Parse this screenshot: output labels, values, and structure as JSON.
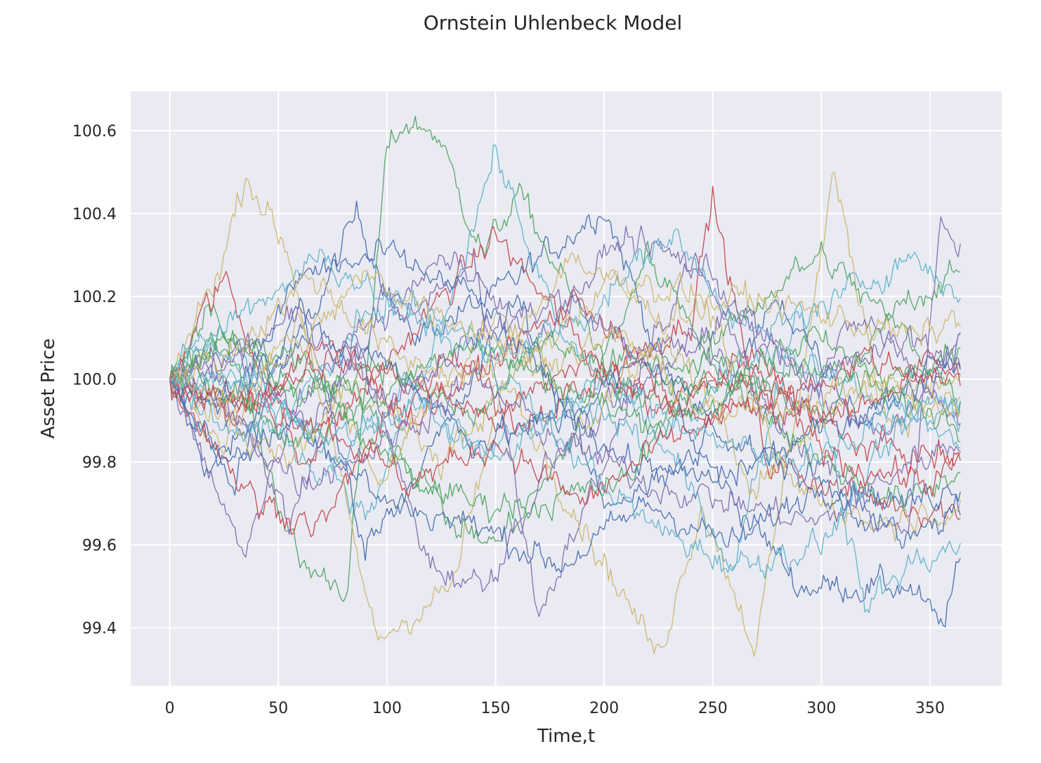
{
  "chart_data": {
    "type": "line",
    "title": "Ornstein Uhlenbeck Model",
    "xlabel": "Time,t",
    "ylabel": "Asset Price",
    "xlim": [
      -18,
      383
    ],
    "ylim": [
      99.26,
      100.695
    ],
    "xticks": [
      0,
      50,
      100,
      150,
      200,
      250,
      300,
      350
    ],
    "yticks": [
      99.4,
      99.6,
      99.8,
      100.0,
      100.2,
      100.4,
      100.6
    ],
    "ytick_labels": [
      "99.4",
      "99.6",
      "99.8",
      "100.0",
      "100.2",
      "100.4",
      "100.6"
    ],
    "grid": true,
    "legend": "none",
    "background": "#eaeaf2",
    "palette": [
      "#4c72b0",
      "#55a868",
      "#c44e52",
      "#8172b2",
      "#ccb974",
      "#64b5cd"
    ],
    "n_steps": 365,
    "initial_value": 100.0,
    "series_anchors": [
      [
        [
          0,
          100
        ],
        [
          18,
          99.78
        ],
        [
          40,
          99.9
        ],
        [
          70,
          100.2
        ],
        [
          86,
          100.4
        ],
        [
          110,
          100.1
        ],
        [
          150,
          100.2
        ],
        [
          200,
          100.42
        ],
        [
          240,
          99.85
        ],
        [
          290,
          99.5
        ],
        [
          340,
          99.5
        ],
        [
          355,
          99.4
        ],
        [
          364,
          99.55
        ]
      ],
      [
        [
          0,
          100
        ],
        [
          20,
          100.2
        ],
        [
          60,
          99.55
        ],
        [
          82,
          99.5
        ],
        [
          100,
          100.55
        ],
        [
          108,
          100.62
        ],
        [
          122,
          100.6
        ],
        [
          145,
          100.3
        ],
        [
          160,
          100.45
        ],
        [
          200,
          100.05
        ],
        [
          260,
          100.0
        ],
        [
          300,
          99.9
        ],
        [
          340,
          100.2
        ],
        [
          364,
          100.25
        ]
      ],
      [
        [
          0,
          100
        ],
        [
          25,
          100.25
        ],
        [
          60,
          99.8
        ],
        [
          110,
          100.1
        ],
        [
          150,
          100.35
        ],
        [
          200,
          100.0
        ],
        [
          240,
          100.15
        ],
        [
          250,
          100.44
        ],
        [
          275,
          99.8
        ],
        [
          330,
          99.7
        ],
        [
          364,
          99.68
        ]
      ],
      [
        [
          0,
          100
        ],
        [
          25,
          99.7
        ],
        [
          33,
          99.56
        ],
        [
          60,
          99.95
        ],
        [
          100,
          100.2
        ],
        [
          140,
          100.3
        ],
        [
          170,
          99.43
        ],
        [
          200,
          99.8
        ],
        [
          240,
          100.3
        ],
        [
          280,
          99.9
        ],
        [
          340,
          99.6
        ],
        [
          355,
          100.38
        ],
        [
          364,
          100.28
        ]
      ],
      [
        [
          0,
          100
        ],
        [
          25,
          100.3
        ],
        [
          35,
          100.5
        ],
        [
          55,
          100.3
        ],
        [
          80,
          99.72
        ],
        [
          95,
          99.37
        ],
        [
          130,
          99.5
        ],
        [
          155,
          100.0
        ],
        [
          190,
          99.65
        ],
        [
          225,
          99.33
        ],
        [
          245,
          99.7
        ],
        [
          270,
          99.35
        ],
        [
          300,
          100.3
        ],
        [
          305,
          100.5
        ],
        [
          330,
          99.9
        ],
        [
          364,
          99.95
        ]
      ],
      [
        [
          0,
          100
        ],
        [
          15,
          100.1
        ],
        [
          60,
          99.9
        ],
        [
          90,
          99.65
        ],
        [
          120,
          100.05
        ],
        [
          150,
          100.55
        ],
        [
          180,
          100.1
        ],
        [
          220,
          99.9
        ],
        [
          260,
          99.55
        ],
        [
          290,
          100.2
        ],
        [
          320,
          99.45
        ],
        [
          340,
          99.55
        ],
        [
          364,
          99.6
        ]
      ],
      [
        [
          0,
          100
        ],
        [
          30,
          99.75
        ],
        [
          60,
          100.2
        ],
        [
          90,
          99.6
        ],
        [
          130,
          99.9
        ],
        [
          160,
          100.2
        ],
        [
          200,
          99.7
        ],
        [
          240,
          99.8
        ],
        [
          280,
          100.2
        ],
        [
          320,
          99.9
        ],
        [
          364,
          100.1
        ]
      ],
      [
        [
          0,
          100
        ],
        [
          25,
          100.1
        ],
        [
          55,
          100.0
        ],
        [
          90,
          99.95
        ],
        [
          130,
          99.65
        ],
        [
          150,
          99.6
        ],
        [
          180,
          99.8
        ],
        [
          220,
          100.3
        ],
        [
          260,
          100.0
        ],
        [
          300,
          99.8
        ],
        [
          340,
          99.7
        ],
        [
          364,
          99.78
        ]
      ],
      [
        [
          0,
          100
        ],
        [
          30,
          99.9
        ],
        [
          70,
          100.1
        ],
        [
          110,
          99.9
        ],
        [
          150,
          100.05
        ],
        [
          190,
          100.2
        ],
        [
          230,
          99.95
        ],
        [
          270,
          100.05
        ],
        [
          310,
          99.85
        ],
        [
          364,
          99.8
        ]
      ],
      [
        [
          0,
          100
        ],
        [
          20,
          100.05
        ],
        [
          55,
          99.65
        ],
        [
          85,
          100.1
        ],
        [
          120,
          99.55
        ],
        [
          145,
          99.5
        ],
        [
          175,
          99.8
        ],
        [
          210,
          99.95
        ],
        [
          245,
          100.1
        ],
        [
          280,
          99.9
        ],
        [
          320,
          100.15
        ],
        [
          364,
          99.9
        ]
      ],
      [
        [
          0,
          100
        ],
        [
          25,
          99.85
        ],
        [
          60,
          100.15
        ],
        [
          95,
          99.75
        ],
        [
          120,
          99.95
        ],
        [
          150,
          100.15
        ],
        [
          190,
          99.9
        ],
        [
          230,
          100.1
        ],
        [
          270,
          99.75
        ],
        [
          310,
          99.95
        ],
        [
          364,
          100.0
        ]
      ],
      [
        [
          0,
          100
        ],
        [
          35,
          100.0
        ],
        [
          70,
          99.75
        ],
        [
          110,
          100.0
        ],
        [
          140,
          99.8
        ],
        [
          180,
          99.95
        ],
        [
          220,
          99.85
        ],
        [
          260,
          100.05
        ],
        [
          300,
          100.05
        ],
        [
          340,
          99.9
        ],
        [
          364,
          99.95
        ]
      ],
      [
        [
          0,
          100
        ],
        [
          30,
          99.95
        ],
        [
          60,
          100.25
        ],
        [
          100,
          100.3
        ],
        [
          140,
          100.2
        ],
        [
          180,
          99.95
        ],
        [
          210,
          99.8
        ],
        [
          250,
          99.75
        ],
        [
          290,
          99.85
        ],
        [
          330,
          99.95
        ],
        [
          364,
          100.05
        ]
      ],
      [
        [
          0,
          100
        ],
        [
          25,
          100.1
        ],
        [
          60,
          100.05
        ],
        [
          100,
          99.8
        ],
        [
          140,
          99.7
        ],
        [
          170,
          99.7
        ],
        [
          210,
          99.75
        ],
        [
          260,
          100.15
        ],
        [
          300,
          100.3
        ],
        [
          340,
          100.1
        ],
        [
          364,
          99.95
        ]
      ],
      [
        [
          0,
          100
        ],
        [
          40,
          99.7
        ],
        [
          70,
          99.65
        ],
        [
          100,
          99.9
        ],
        [
          130,
          100.05
        ],
        [
          160,
          99.9
        ],
        [
          200,
          100.0
        ],
        [
          240,
          99.9
        ],
        [
          280,
          99.95
        ],
        [
          320,
          100.05
        ],
        [
          364,
          100.0
        ]
      ],
      [
        [
          0,
          100
        ],
        [
          30,
          100.05
        ],
        [
          65,
          99.9
        ],
        [
          100,
          100.15
        ],
        [
          135,
          100.25
        ],
        [
          170,
          100.1
        ],
        [
          210,
          100.35
        ],
        [
          250,
          100.25
        ],
        [
          290,
          100.0
        ],
        [
          330,
          99.85
        ],
        [
          364,
          100.1
        ]
      ],
      [
        [
          0,
          100
        ],
        [
          25,
          99.9
        ],
        [
          55,
          99.8
        ],
        [
          85,
          100.0
        ],
        [
          125,
          99.8
        ],
        [
          165,
          100.05
        ],
        [
          205,
          100.25
        ],
        [
          245,
          100.2
        ],
        [
          285,
          99.75
        ],
        [
          325,
          99.65
        ],
        [
          364,
          99.7
        ]
      ],
      [
        [
          0,
          100
        ],
        [
          30,
          100.15
        ],
        [
          70,
          100.3
        ],
        [
          110,
          100.15
        ],
        [
          150,
          100.05
        ],
        [
          190,
          100.15
        ],
        [
          230,
          100.35
        ],
        [
          270,
          100.1
        ],
        [
          310,
          100.2
        ],
        [
          340,
          100.3
        ],
        [
          364,
          100.2
        ]
      ],
      [
        [
          0,
          100
        ],
        [
          25,
          99.8
        ],
        [
          60,
          99.9
        ],
        [
          100,
          99.7
        ],
        [
          140,
          99.65
        ],
        [
          180,
          99.55
        ],
        [
          220,
          99.7
        ],
        [
          260,
          99.6
        ],
        [
          300,
          99.75
        ],
        [
          340,
          99.7
        ],
        [
          364,
          99.75
        ]
      ],
      [
        [
          0,
          100
        ],
        [
          25,
          100.1
        ],
        [
          60,
          99.95
        ],
        [
          95,
          100.05
        ],
        [
          140,
          99.9
        ],
        [
          175,
          100.1
        ],
        [
          215,
          99.95
        ],
        [
          255,
          100.0
        ],
        [
          295,
          100.1
        ],
        [
          330,
          100.0
        ],
        [
          364,
          100.05
        ]
      ],
      [
        [
          0,
          100
        ],
        [
          35,
          99.95
        ],
        [
          70,
          100.05
        ],
        [
          110,
          100.0
        ],
        [
          150,
          99.9
        ],
        [
          190,
          100.05
        ],
        [
          230,
          99.95
        ],
        [
          270,
          100.0
        ],
        [
          310,
          99.9
        ],
        [
          350,
          100.05
        ],
        [
          364,
          100.0
        ]
      ],
      [
        [
          0,
          100
        ],
        [
          30,
          99.9
        ],
        [
          60,
          99.75
        ],
        [
          100,
          99.85
        ],
        [
          140,
          100.0
        ],
        [
          180,
          99.85
        ],
        [
          220,
          99.75
        ],
        [
          260,
          99.7
        ],
        [
          300,
          99.65
        ],
        [
          340,
          99.8
        ],
        [
          364,
          99.85
        ]
      ],
      [
        [
          0,
          100
        ],
        [
          25,
          100.05
        ],
        [
          65,
          100.25
        ],
        [
          105,
          100.05
        ],
        [
          145,
          100.0
        ],
        [
          185,
          100.3
        ],
        [
          225,
          100.15
        ],
        [
          265,
          100.2
        ],
        [
          305,
          100.15
        ],
        [
          345,
          100.1
        ],
        [
          364,
          100.15
        ]
      ],
      [
        [
          0,
          100
        ],
        [
          30,
          99.85
        ],
        [
          60,
          99.95
        ],
        [
          100,
          100.2
        ],
        [
          140,
          100.1
        ],
        [
          180,
          99.85
        ],
        [
          220,
          99.65
        ],
        [
          260,
          99.55
        ],
        [
          300,
          99.6
        ],
        [
          340,
          99.9
        ],
        [
          364,
          99.85
        ]
      ],
      [
        [
          0,
          100
        ],
        [
          20,
          99.95
        ],
        [
          60,
          100.1
        ],
        [
          100,
          100.05
        ],
        [
          140,
          99.85
        ],
        [
          180,
          99.9
        ],
        [
          220,
          100.05
        ],
        [
          260,
          99.85
        ],
        [
          300,
          99.75
        ],
        [
          340,
          99.6
        ],
        [
          364,
          99.7
        ]
      ],
      [
        [
          0,
          100
        ],
        [
          25,
          100.0
        ],
        [
          55,
          99.85
        ],
        [
          95,
          99.95
        ],
        [
          135,
          100.1
        ],
        [
          175,
          100.0
        ],
        [
          215,
          99.9
        ],
        [
          255,
          99.95
        ],
        [
          295,
          100.05
        ],
        [
          335,
          99.95
        ],
        [
          364,
          99.9
        ]
      ],
      [
        [
          0,
          100
        ],
        [
          30,
          99.95
        ],
        [
          70,
          99.9
        ],
        [
          110,
          99.75
        ],
        [
          150,
          99.85
        ],
        [
          190,
          99.7
        ],
        [
          230,
          99.85
        ],
        [
          270,
          99.95
        ],
        [
          310,
          99.8
        ],
        [
          350,
          99.75
        ],
        [
          364,
          99.8
        ]
      ],
      [
        [
          0,
          100
        ],
        [
          25,
          100.05
        ],
        [
          60,
          100.15
        ],
        [
          100,
          99.95
        ],
        [
          140,
          100.1
        ],
        [
          180,
          100.2
        ],
        [
          220,
          100.05
        ],
        [
          260,
          100.15
        ],
        [
          300,
          100.0
        ],
        [
          340,
          100.1
        ],
        [
          364,
          100.05
        ]
      ],
      [
        [
          0,
          100
        ],
        [
          20,
          99.95
        ],
        [
          55,
          100.05
        ],
        [
          90,
          100.25
        ],
        [
          130,
          100.15
        ],
        [
          170,
          100.05
        ],
        [
          210,
          100.1
        ],
        [
          250,
          99.9
        ],
        [
          290,
          99.95
        ],
        [
          330,
          100.0
        ],
        [
          364,
          99.9
        ]
      ],
      [
        [
          0,
          100
        ],
        [
          35,
          100.0
        ],
        [
          75,
          99.85
        ],
        [
          115,
          99.95
        ],
        [
          155,
          99.8
        ],
        [
          195,
          100.0
        ],
        [
          235,
          99.9
        ],
        [
          275,
          99.8
        ],
        [
          315,
          99.85
        ],
        [
          355,
          99.95
        ],
        [
          364,
          99.9
        ]
      ]
    ]
  }
}
